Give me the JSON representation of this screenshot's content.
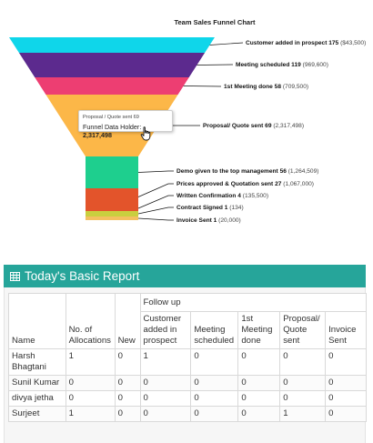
{
  "chart_data": {
    "type": "funnel",
    "title": "Team Sales Funnel Chart",
    "stages": [
      {
        "name": "Customer added in prospect",
        "count": 175,
        "value_label": "($43,500)",
        "color": "#0fd6ea"
      },
      {
        "name": "Meeting scheduled",
        "count": 119,
        "value_label": "(969,600)",
        "color": "#5c2a8e"
      },
      {
        "name": "1st Meeting done",
        "count": 58,
        "value_label": "(709,500)",
        "color": "#ed3e72"
      },
      {
        "name": "Proposal/ Quote sent",
        "count": 69,
        "value_label": "(2,317,498)",
        "color": "#fcb748"
      },
      {
        "name": "Demo given to the top management",
        "count": 56,
        "value_label": "(1,264,509)",
        "color": "#1ecf8e"
      },
      {
        "name": "Prices approved & Quotation sent",
        "count": 27,
        "value_label": "(1,067,000)",
        "color": "#e3542b"
      },
      {
        "name": "Written Confirmation",
        "count": 4,
        "value_label": "(135,500)",
        "color": "#e3542b"
      },
      {
        "name": "Contract Signed",
        "count": 1,
        "value_label": "(134)",
        "color": "#c9cf3f"
      },
      {
        "name": "Invoice Sent",
        "count": 1,
        "value_label": "(20,000)",
        "color": "#f4c060"
      }
    ],
    "tooltip": {
      "title": "Proposal / Quote sent 69",
      "label": "Funnel Data Holder:",
      "value": "2,317,498"
    }
  },
  "report": {
    "title": "Today's Basic Report",
    "icon": "table-grid-icon",
    "header_color": "#26a59a",
    "columns": {
      "name": "Name",
      "allocations": "No. of Allocations",
      "new": "New",
      "follow_up": "Follow up",
      "sub": [
        "Customer added in prospect",
        "Meeting scheduled",
        "1st Meeting done",
        "Proposal/ Quote sent",
        "Invoice Sent"
      ]
    },
    "rows": [
      {
        "name": "Harsh Bhagtani",
        "cells": [
          "1",
          "0",
          "1",
          "0",
          "0",
          "0",
          "0"
        ]
      },
      {
        "name": "Sunil Kumar",
        "cells": [
          "0",
          "0",
          "0",
          "0",
          "0",
          "0",
          "0"
        ]
      },
      {
        "name": "divya jetha",
        "cells": [
          "0",
          "0",
          "0",
          "0",
          "0",
          "0",
          "0"
        ]
      },
      {
        "name": "Surjeet",
        "cells": [
          "1",
          "0",
          "0",
          "0",
          "0",
          "1",
          "0"
        ]
      }
    ]
  }
}
